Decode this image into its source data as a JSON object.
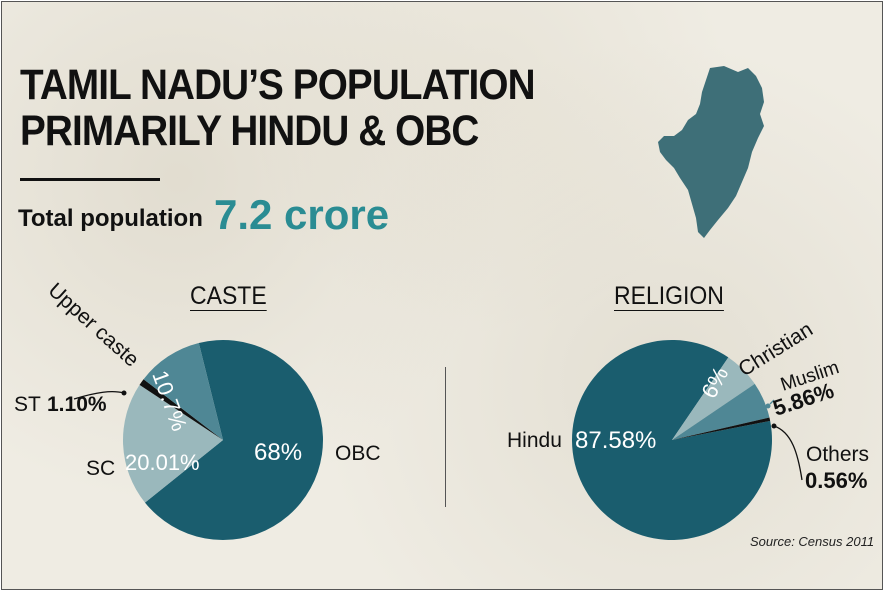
{
  "title_line1": "TAMIL NADU’S POPULATION",
  "title_line2": "PRIMARILY HINDU & OBC",
  "total": {
    "label": "Total population",
    "value": "7.2 crore"
  },
  "map_icon": "tamil-nadu-map",
  "colors": {
    "dark_teal": "#1a5d6e",
    "light_teal": "#9ab8bc",
    "mid_teal": "#4f8795",
    "accent": "#2a8c93",
    "black": "#111111"
  },
  "source": "Source: Census 2011",
  "chart_data": [
    {
      "type": "pie",
      "title": "CASTE",
      "slices": [
        {
          "name": "OBC",
          "value": 68,
          "label": "68%"
        },
        {
          "name": "SC",
          "value": 20.01,
          "label": "20.01%"
        },
        {
          "name": "ST",
          "value": 1.1,
          "label": "1.10%"
        },
        {
          "name": "Upper caste",
          "value": 10.7,
          "label": "10.7%"
        }
      ]
    },
    {
      "type": "pie",
      "title": "RELIGION",
      "slices": [
        {
          "name": "Hindu",
          "value": 87.58,
          "label": "87.58%"
        },
        {
          "name": "Christian",
          "value": 6,
          "label": "6%"
        },
        {
          "name": "Muslim",
          "value": 5.86,
          "label": "5.86%"
        },
        {
          "name": "Others",
          "value": 0.56,
          "label": "0.56%"
        }
      ]
    }
  ]
}
